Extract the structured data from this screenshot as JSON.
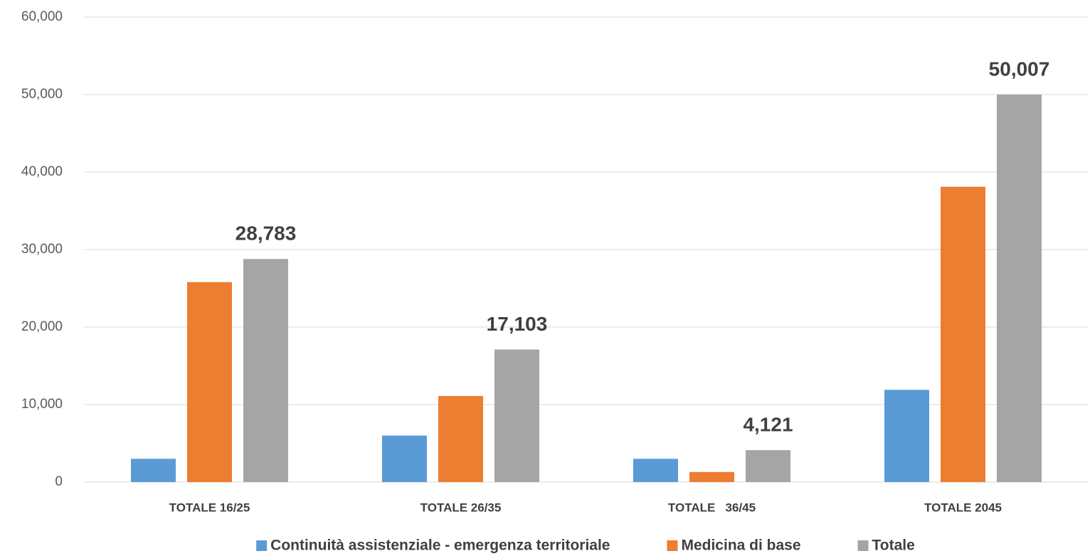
{
  "chart_data": {
    "type": "bar",
    "categories": [
      "TOTALE 16/25",
      "TOTALE 26/35",
      "TOTALE   36/45",
      "TOTALE 2045"
    ],
    "series": [
      {
        "name": "Continuità assistenziale - emergenza territoriale",
        "color": "#5b9bd5",
        "values": [
          3000,
          6000,
          3000,
          11900
        ]
      },
      {
        "name": "Medicina di base",
        "color": "#ed7d31",
        "values": [
          25800,
          11100,
          1300,
          38100
        ]
      },
      {
        "name": "Totale",
        "color": "#a5a5a5",
        "values": [
          28783,
          17103,
          4121,
          50007
        ],
        "value_labels": [
          "28,783",
          "17,103",
          "4,121",
          "50,007"
        ]
      }
    ],
    "ylim": [
      0,
      60000
    ],
    "yticks": [
      {
        "value": 0,
        "label": "0"
      },
      {
        "value": 10000,
        "label": "10,000"
      },
      {
        "value": 20000,
        "label": "20,000"
      },
      {
        "value": 30000,
        "label": "30,000"
      },
      {
        "value": 40000,
        "label": "40,000"
      },
      {
        "value": 50000,
        "label": "50,000"
      },
      {
        "value": 60000,
        "label": "60,000"
      }
    ],
    "grid": true,
    "legend": "bottom"
  }
}
